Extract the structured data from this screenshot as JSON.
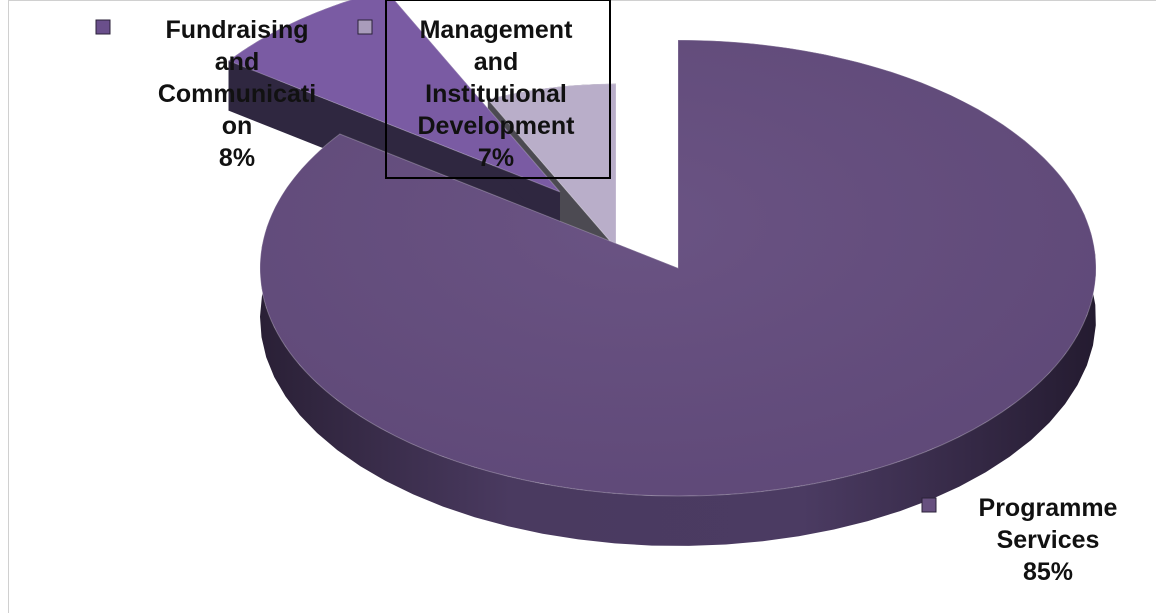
{
  "chart_data": {
    "type": "pie",
    "title": "",
    "categories": [
      "Programme Services",
      "Fundraising and Communication",
      "Management and Institutional Development"
    ],
    "values": [
      85,
      8,
      7
    ],
    "unit": "%",
    "exploded": true,
    "three_d": true,
    "slices": [
      {
        "name": "Programme Services",
        "value": 85,
        "label_lines": [
          "Programme",
          "Services",
          "85%"
        ],
        "color": "#67507f",
        "side_color": "#3e2f52",
        "marker_color": "#67507f"
      },
      {
        "name": "Fundraising and Communication",
        "value": 8,
        "label_lines": [
          "Fundraising",
          "and",
          "Communicati",
          "on",
          "8%"
        ],
        "color": "#7a5ba3",
        "side_color": "#2f2740",
        "marker_color": "#6a4f8c"
      },
      {
        "name": "Management and Institutional Development",
        "value": 7,
        "label_lines": [
          "Management",
          "and",
          "Institutional",
          "Development",
          "7%"
        ],
        "color": "#b9aec9",
        "side_color": "#4c4a52",
        "marker_color": "#a99cbb"
      }
    ]
  }
}
